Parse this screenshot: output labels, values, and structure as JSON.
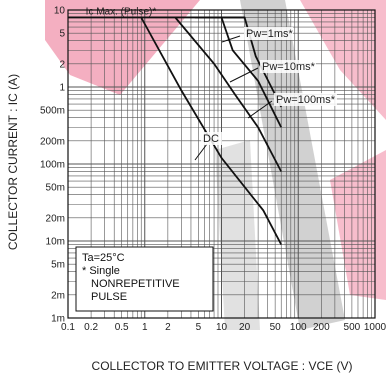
{
  "chart_data": {
    "type": "line",
    "xlabel": "COLLECTOR TO EMITTER VOLTAGE : VCE (V)",
    "ylabel": "COLLECTOR CURRENT : IC (A)",
    "x_scale": "log",
    "y_scale": "log",
    "xlim": [
      0.1,
      1000
    ],
    "ylim": [
      0.001,
      10
    ],
    "x_ticks": [
      {
        "value": 0.1,
        "label": "0.1"
      },
      {
        "value": 0.2,
        "label": "0.2"
      },
      {
        "value": 0.5,
        "label": "0.5"
      },
      {
        "value": 1,
        "label": "1"
      },
      {
        "value": 2,
        "label": "2"
      },
      {
        "value": 5,
        "label": "5"
      },
      {
        "value": 10,
        "label": "10"
      },
      {
        "value": 20,
        "label": "20"
      },
      {
        "value": 50,
        "label": "50"
      },
      {
        "value": 100,
        "label": "100"
      },
      {
        "value": 200,
        "label": "200"
      },
      {
        "value": 500,
        "label": "500"
      },
      {
        "value": 1000,
        "label": "1000"
      }
    ],
    "y_ticks": [
      {
        "value": 10,
        "label": "10"
      },
      {
        "value": 5,
        "label": "5"
      },
      {
        "value": 2,
        "label": "2"
      },
      {
        "value": 1,
        "label": "1"
      },
      {
        "value": 0.5,
        "label": "500m"
      },
      {
        "value": 0.2,
        "label": "200m"
      },
      {
        "value": 0.1,
        "label": "100m"
      },
      {
        "value": 0.05,
        "label": "50m"
      },
      {
        "value": 0.02,
        "label": "20m"
      },
      {
        "value": 0.01,
        "label": "10m"
      },
      {
        "value": 0.005,
        "label": "5m"
      },
      {
        "value": 0.002,
        "label": "2m"
      },
      {
        "value": 0.001,
        "label": "1m"
      }
    ],
    "grid": true,
    "series": [
      {
        "name": "Pw=1ms",
        "points": [
          [
            7,
            8
          ],
          [
            20,
            8
          ],
          [
            28,
            2.5
          ],
          [
            50,
            0.8
          ],
          [
            60,
            0.55
          ]
        ]
      },
      {
        "name": "Pw=10ms",
        "points": [
          [
            4.5,
            8
          ],
          [
            10,
            8
          ],
          [
            14,
            3
          ],
          [
            30,
            1.2
          ],
          [
            60,
            0.3
          ]
        ]
      },
      {
        "name": "Pw=100ms",
        "points": [
          [
            2.5,
            8
          ],
          [
            8,
            2
          ],
          [
            15,
            0.8
          ],
          [
            30,
            0.3
          ],
          [
            60,
            0.08
          ]
        ]
      },
      {
        "name": "DC",
        "points": [
          [
            0.9,
            8
          ],
          [
            3,
            0.9
          ],
          [
            10,
            0.12
          ],
          [
            35,
            0.025
          ],
          [
            60,
            0.009
          ]
        ]
      }
    ],
    "limit_line": {
      "label": "Ic Max. (Pulse)",
      "marker": "*",
      "y": 8,
      "x_start": 0.1
    },
    "series_markers": {
      "Pw=1ms": "*",
      "Pw=10ms": "*",
      "Pw=100ms": "*",
      "DC": ""
    },
    "legend": {
      "placement": "bottom-left",
      "lines": [
        "Ta=25°C",
        "* Single",
        "NONREPETITIVE",
        "PULSE"
      ]
    },
    "colors": {
      "curve": "#111111",
      "grid": "#555555",
      "watermark_red": "#e8537a",
      "watermark_gray": "#9a9a9a"
    }
  }
}
